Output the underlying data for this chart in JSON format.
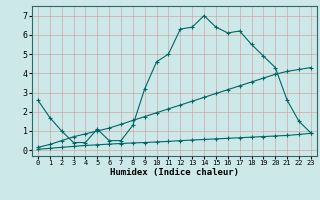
{
  "xlabel": "Humidex (Indice chaleur)",
  "ylabel": "",
  "background_color": "#cde8e8",
  "grid_color": "#aacccc",
  "line_color": "#006666",
  "xlim": [
    -0.5,
    23.5
  ],
  "ylim": [
    -0.3,
    7.5
  ],
  "xticks": [
    0,
    1,
    2,
    3,
    4,
    5,
    6,
    7,
    8,
    9,
    10,
    11,
    12,
    13,
    14,
    15,
    16,
    17,
    18,
    19,
    20,
    21,
    22,
    23
  ],
  "yticks": [
    0,
    1,
    2,
    3,
    4,
    5,
    6,
    7
  ],
  "line1_x": [
    0,
    1,
    2,
    3,
    4,
    5,
    6,
    7,
    8,
    9,
    10,
    11,
    12,
    13,
    14,
    15,
    16,
    17,
    18,
    19,
    20,
    21,
    22,
    23
  ],
  "line1_y": [
    2.6,
    1.7,
    1.0,
    0.4,
    0.4,
    1.1,
    0.5,
    0.5,
    1.3,
    3.2,
    4.6,
    5.0,
    6.3,
    6.4,
    7.0,
    6.4,
    6.1,
    6.2,
    5.5,
    4.9,
    4.3,
    2.6,
    1.5,
    0.9
  ],
  "line2_x": [
    0,
    1,
    2,
    3,
    4,
    5,
    6,
    7,
    8,
    9,
    10,
    11,
    12,
    13,
    14,
    15,
    16,
    17,
    18,
    19,
    20,
    21,
    22,
    23
  ],
  "line2_y": [
    0.05,
    0.1,
    0.15,
    0.2,
    0.25,
    0.28,
    0.32,
    0.35,
    0.38,
    0.4,
    0.43,
    0.46,
    0.5,
    0.53,
    0.56,
    0.59,
    0.62,
    0.65,
    0.68,
    0.71,
    0.74,
    0.77,
    0.82,
    0.88
  ],
  "line3_x": [
    0,
    1,
    2,
    3,
    4,
    5,
    6,
    7,
    8,
    9,
    10,
    11,
    12,
    13,
    14,
    15,
    16,
    17,
    18,
    19,
    20,
    21,
    22,
    23
  ],
  "line3_y": [
    0.15,
    0.3,
    0.5,
    0.7,
    0.85,
    1.0,
    1.15,
    1.35,
    1.55,
    1.75,
    1.95,
    2.15,
    2.35,
    2.55,
    2.75,
    2.95,
    3.15,
    3.35,
    3.55,
    3.75,
    3.95,
    4.1,
    4.2,
    4.3
  ]
}
